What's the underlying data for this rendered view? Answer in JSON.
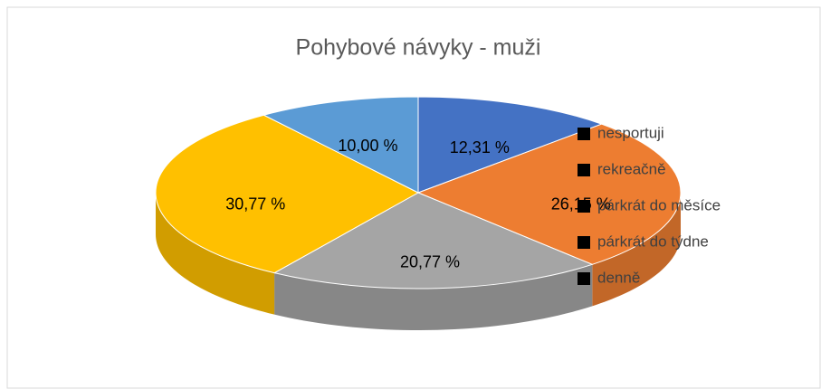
{
  "chart_data": {
    "type": "pie",
    "title": "Pohybové návyky - muži",
    "categories": [
      "nesportuji",
      "rekreačně",
      "párkrát do měsíce",
      "párkrát do týdne",
      "denně"
    ],
    "values": [
      12.31,
      26.15,
      20.77,
      30.77,
      10.0
    ],
    "value_labels": [
      "12,31 %",
      "26,15 %",
      "20,77 %",
      "30,77 %",
      "10,00 %"
    ],
    "colors": [
      "#4472c4",
      "#ed7d31",
      "#a5a5a5",
      "#ffc000",
      "#5b9bd5"
    ],
    "legend": "right"
  }
}
